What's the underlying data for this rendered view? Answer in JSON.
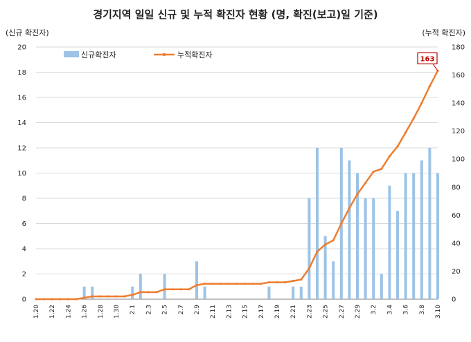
{
  "chart_data": {
    "type": "bar",
    "title": "경기지역 일일 신규 및 누적 확진자 현황 (명, 확진(보고)일 기준)",
    "ylabel": "(신규 확진자)",
    "y2label": "(누적 확진자)",
    "ylim": [
      0,
      20
    ],
    "y2lim": [
      0,
      180
    ],
    "yticks": [
      0,
      2,
      4,
      6,
      8,
      10,
      12,
      14,
      16,
      18,
      20
    ],
    "y2ticks": [
      0,
      20,
      40,
      60,
      80,
      100,
      120,
      140,
      160,
      180
    ],
    "x": [
      "1.20",
      "1.21",
      "1.22",
      "1.23",
      "1.24",
      "1.25",
      "1.26",
      "1.27",
      "1.28",
      "1.29",
      "1.30",
      "1.31",
      "2.1",
      "2.2",
      "2.3",
      "2.4",
      "2.5",
      "2.6",
      "2.7",
      "2.8",
      "2.9",
      "2.10",
      "2.11",
      "2.12",
      "2.13",
      "2.14",
      "2.15",
      "2.16",
      "2.17",
      "2.18",
      "2.19",
      "2.20",
      "2.21",
      "2.22",
      "2.23",
      "2.24",
      "2.25",
      "2.26",
      "2.27",
      "2.28",
      "2.29",
      "3.1",
      "3.2",
      "3.3",
      "3.4",
      "3.5",
      "3.6",
      "3.7",
      "3.8",
      "3.9",
      "3.10"
    ],
    "xtick_labels": [
      "1.20",
      "1.22",
      "1.24",
      "1.26",
      "1.28",
      "1.30",
      "2.1",
      "2.3",
      "2.5",
      "2.7",
      "2.9",
      "2.11",
      "2.13",
      "2.15",
      "2.17",
      "2.19",
      "2.21",
      "2.23",
      "2.25",
      "2.27",
      "2.29",
      "3.2",
      "3.4",
      "3.6",
      "3.8",
      "3.10"
    ],
    "series": [
      {
        "name": "신규확진자",
        "kind": "bar",
        "axis": "left",
        "color": "#9dc3e6",
        "values": [
          0,
          0,
          0,
          0,
          0,
          0,
          1,
          1,
          0,
          0,
          0,
          0,
          1,
          2,
          0,
          0,
          2,
          0,
          0,
          0,
          3,
          1,
          0,
          0,
          0,
          0,
          0,
          0,
          0,
          1,
          0,
          0,
          1,
          1,
          8,
          12,
          5,
          3,
          12,
          11,
          10,
          8,
          8,
          2,
          9,
          7,
          10,
          10,
          11,
          12,
          10
        ]
      },
      {
        "name": "누적확진자",
        "kind": "line",
        "axis": "right",
        "color": "#ed7d31",
        "values": [
          0,
          0,
          0,
          0,
          0,
          0,
          1,
          2,
          2,
          2,
          2,
          2,
          3,
          5,
          5,
          5,
          7,
          7,
          7,
          7,
          10,
          11,
          11,
          11,
          11,
          11,
          11,
          11,
          11,
          12,
          12,
          12,
          13,
          14,
          22,
          34,
          39,
          42,
          54,
          65,
          75,
          83,
          91,
          93,
          102,
          109,
          119,
          129,
          140,
          152,
          163
        ]
      }
    ],
    "annotation": "163",
    "legend_position": "top-left",
    "grid": true
  }
}
